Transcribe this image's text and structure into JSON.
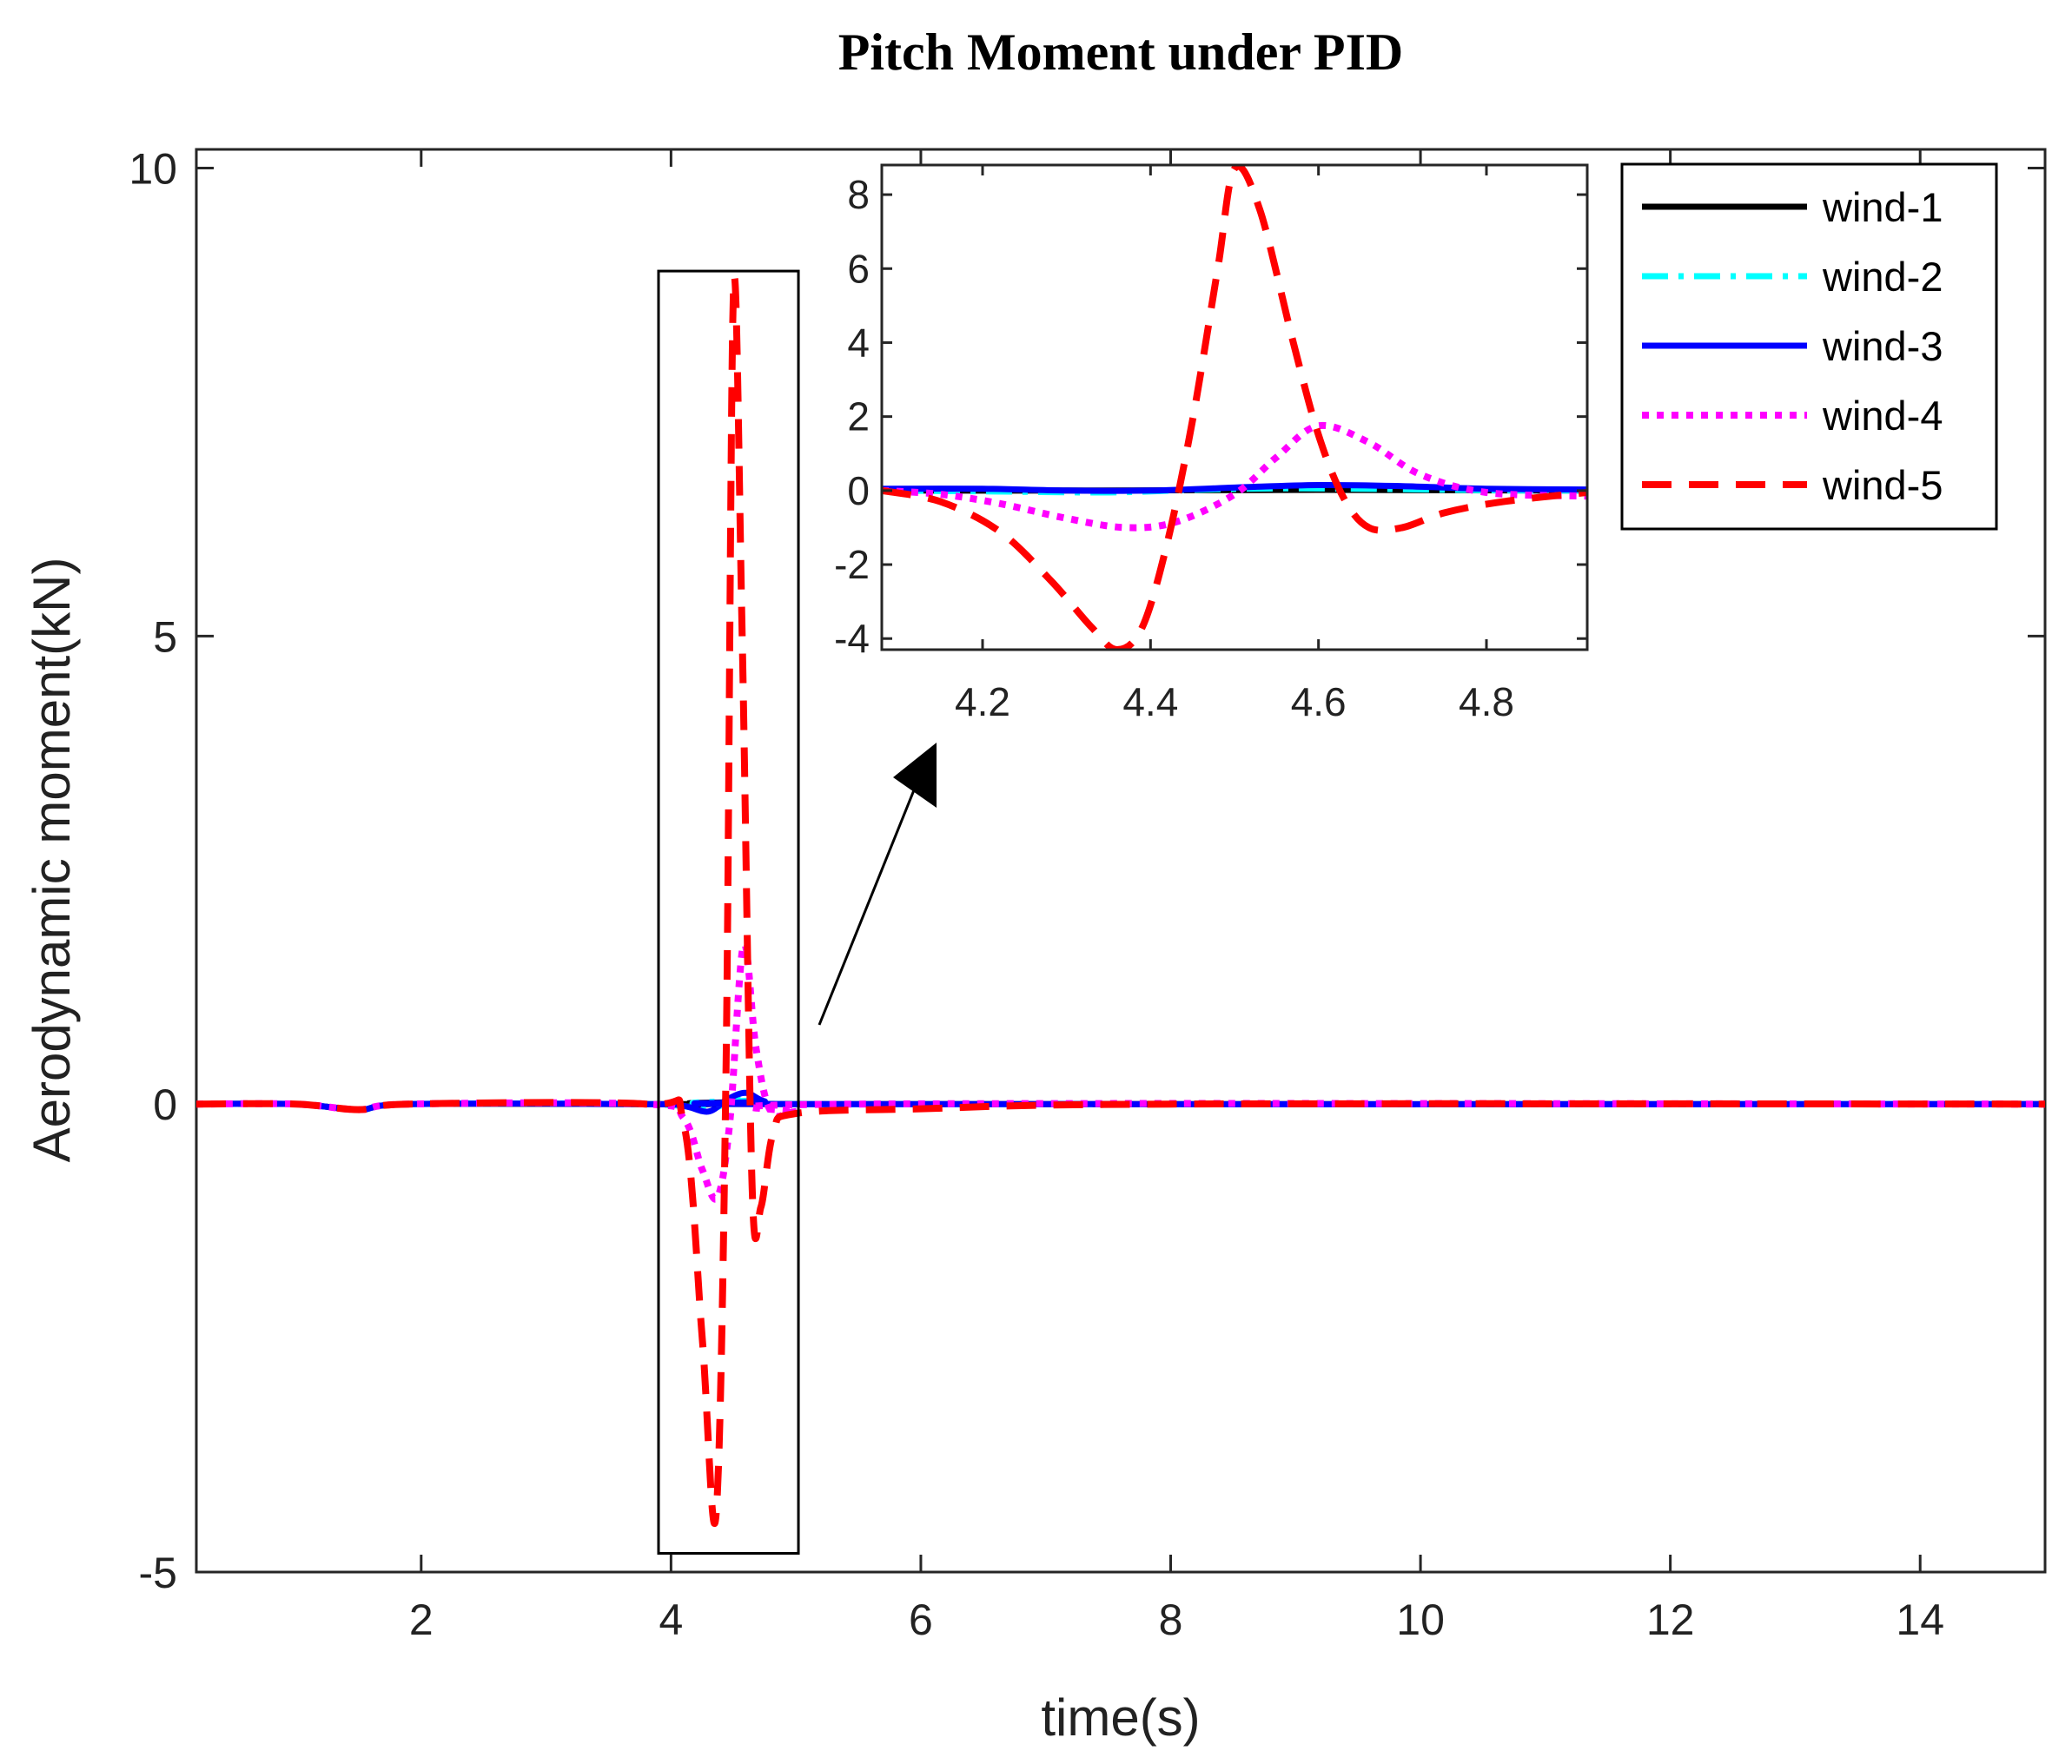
{
  "chart_data": {
    "type": "line",
    "title": "Pitch Moment under PID",
    "xlabel": "time(s)",
    "ylabel": "Aerodynamic moment(kN)",
    "xlim": [
      0.2,
      15
    ],
    "ylim": [
      -5,
      10.2
    ],
    "xticks": [
      "2",
      "4",
      "6",
      "8",
      "10",
      "12",
      "14"
    ],
    "yticks": [
      "-5",
      "0",
      "5",
      "10"
    ],
    "legend_position": "top-right",
    "series": [
      {
        "name": "wind-1",
        "color": "#000000",
        "dash": "solid",
        "points": [
          [
            0.2,
            0
          ],
          [
            1.0,
            0
          ],
          [
            1.5,
            -0.06
          ],
          [
            1.9,
            0
          ],
          [
            3.8,
            0
          ],
          [
            4.3,
            0.0
          ],
          [
            4.6,
            0.02
          ],
          [
            5.0,
            0
          ],
          [
            15,
            0
          ]
        ]
      },
      {
        "name": "wind-2",
        "color": "#00ffff",
        "dash": "dashdot",
        "points": [
          [
            0.2,
            0
          ],
          [
            1.0,
            0
          ],
          [
            1.5,
            -0.06
          ],
          [
            1.9,
            0
          ],
          [
            3.8,
            0
          ],
          [
            4.3,
            -0.05
          ],
          [
            4.5,
            0.05
          ],
          [
            4.7,
            0.04
          ],
          [
            5.0,
            0
          ],
          [
            15,
            0
          ]
        ]
      },
      {
        "name": "wind-3",
        "color": "#0000ff",
        "dash": "solid",
        "points": [
          [
            0.2,
            0
          ],
          [
            1.0,
            0
          ],
          [
            1.5,
            -0.06
          ],
          [
            1.9,
            0
          ],
          [
            3.8,
            0
          ],
          [
            4.1,
            -0.02
          ],
          [
            4.3,
            -0.08
          ],
          [
            4.45,
            0.05
          ],
          [
            4.6,
            0.12
          ],
          [
            4.75,
            0.03
          ],
          [
            5.0,
            0
          ],
          [
            15,
            0
          ]
        ]
      },
      {
        "name": "wind-4",
        "color": "#ff00ff",
        "dash": "dotted",
        "points": [
          [
            0.2,
            0
          ],
          [
            1.0,
            0
          ],
          [
            1.5,
            -0.06
          ],
          [
            1.9,
            0
          ],
          [
            3.8,
            0
          ],
          [
            4.1,
            -0.15
          ],
          [
            4.25,
            -0.7
          ],
          [
            4.37,
            -1.0
          ],
          [
            4.47,
            -0.2
          ],
          [
            4.58,
            1.7
          ],
          [
            4.68,
            0.6
          ],
          [
            4.8,
            -0.08
          ],
          [
            5.0,
            -0.08
          ],
          [
            5.5,
            0
          ],
          [
            15,
            0
          ]
        ]
      },
      {
        "name": "wind-5",
        "color": "#ff0000",
        "dash": "dashed",
        "points": [
          [
            0.2,
            0
          ],
          [
            1.0,
            0
          ],
          [
            1.5,
            -0.06
          ],
          [
            1.9,
            0
          ],
          [
            3.8,
            0
          ],
          [
            4.1,
            -0.2
          ],
          [
            4.25,
            -2.5
          ],
          [
            4.36,
            -4.4
          ],
          [
            4.44,
            0.3
          ],
          [
            4.5,
            8.7
          ],
          [
            4.57,
            5.0
          ],
          [
            4.65,
            -0.9
          ],
          [
            4.72,
            -1.1
          ],
          [
            4.82,
            -0.3
          ],
          [
            5.0,
            -0.1
          ],
          [
            6.0,
            -0.05
          ],
          [
            8.0,
            0
          ],
          [
            15,
            0
          ]
        ]
      }
    ],
    "inset": {
      "xlim": [
        4.08,
        4.92
      ],
      "ylim": [
        -4.3,
        8.8
      ],
      "xticks": [
        "4.2",
        "4.4",
        "4.6",
        "4.8"
      ],
      "yticks": [
        "-4",
        "-2",
        "0",
        "2",
        "4",
        "6",
        "8"
      ],
      "series": [
        {
          "name": "wind-1",
          "color": "#000000",
          "dash": "solid",
          "points": [
            [
              4.08,
              0
            ],
            [
              4.3,
              0
            ],
            [
              4.45,
              0.01
            ],
            [
              4.6,
              0.02
            ],
            [
              4.75,
              0.01
            ],
            [
              4.92,
              0
            ]
          ]
        },
        {
          "name": "wind-2",
          "color": "#00ffff",
          "dash": "dashdot",
          "points": [
            [
              4.08,
              0
            ],
            [
              4.2,
              -0.02
            ],
            [
              4.35,
              -0.05
            ],
            [
              4.45,
              0.02
            ],
            [
              4.55,
              0.06
            ],
            [
              4.65,
              0.05
            ],
            [
              4.8,
              0.01
            ],
            [
              4.92,
              0
            ]
          ]
        },
        {
          "name": "wind-3",
          "color": "#0000ff",
          "dash": "solid",
          "points": [
            [
              4.08,
              0.05
            ],
            [
              4.2,
              0.05
            ],
            [
              4.3,
              0
            ],
            [
              4.4,
              0.0
            ],
            [
              4.5,
              0.08
            ],
            [
              4.6,
              0.15
            ],
            [
              4.7,
              0.12
            ],
            [
              4.8,
              0.05
            ],
            [
              4.92,
              0.03
            ]
          ]
        },
        {
          "name": "wind-4",
          "color": "#ff00ff",
          "dash": "dotted",
          "points": [
            [
              4.08,
              0
            ],
            [
              4.15,
              -0.1
            ],
            [
              4.22,
              -0.35
            ],
            [
              4.3,
              -0.75
            ],
            [
              4.37,
              -1.0
            ],
            [
              4.43,
              -0.85
            ],
            [
              4.5,
              -0.1
            ],
            [
              4.55,
              0.9
            ],
            [
              4.6,
              1.75
            ],
            [
              4.66,
              1.3
            ],
            [
              4.72,
              0.45
            ],
            [
              4.8,
              -0.05
            ],
            [
              4.92,
              -0.15
            ]
          ]
        },
        {
          "name": "wind-5",
          "color": "#ff0000",
          "dash": "dashed",
          "points": [
            [
              4.08,
              0
            ],
            [
              4.15,
              -0.3
            ],
            [
              4.22,
              -1.1
            ],
            [
              4.28,
              -2.4
            ],
            [
              4.33,
              -3.7
            ],
            [
              4.36,
              -4.3
            ],
            [
              4.39,
              -3.7
            ],
            [
              4.42,
              -1.4
            ],
            [
              4.45,
              1.9
            ],
            [
              4.48,
              6.0
            ],
            [
              4.5,
              8.7
            ],
            [
              4.53,
              7.6
            ],
            [
              4.57,
              4.0
            ],
            [
              4.6,
              1.5
            ],
            [
              4.63,
              -0.2
            ],
            [
              4.66,
              -1.0
            ],
            [
              4.7,
              -1.0
            ],
            [
              4.75,
              -0.6
            ],
            [
              4.82,
              -0.3
            ],
            [
              4.92,
              -0.05
            ]
          ]
        }
      ]
    },
    "zoom_box_x": [
      3.9,
      5.02
    ],
    "zoom_box_y": [
      -4.8,
      8.9
    ]
  }
}
